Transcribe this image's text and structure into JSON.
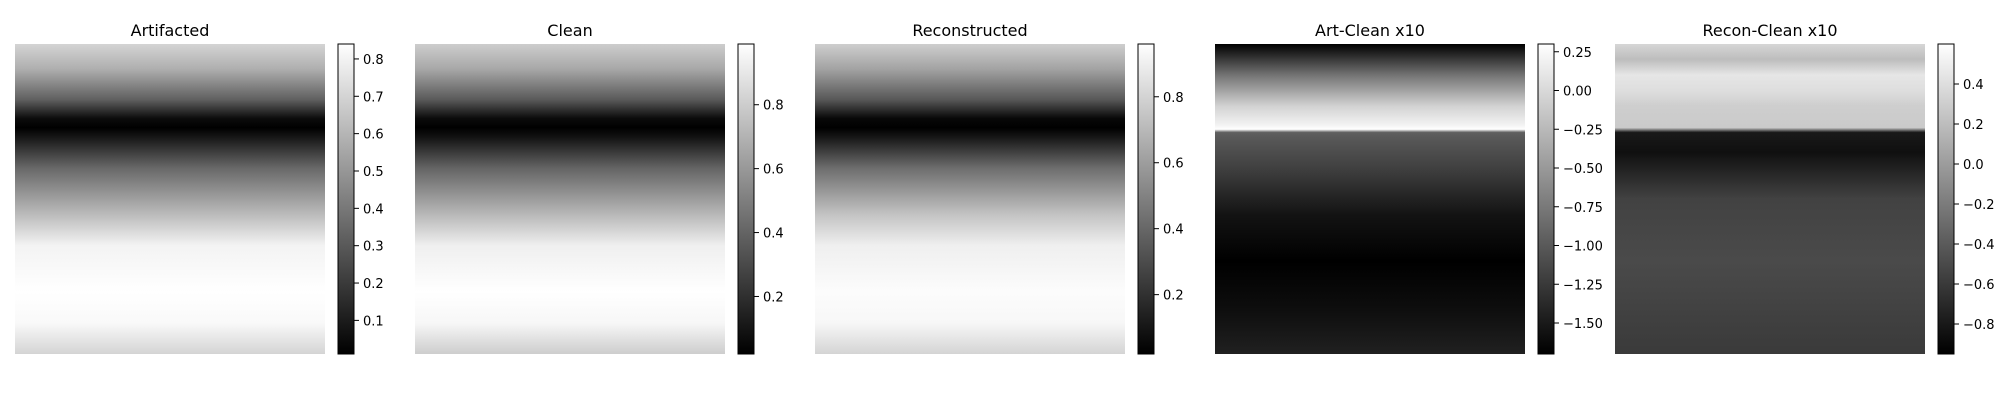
{
  "chart_data": [
    {
      "type": "heatmap",
      "title": "Artifacted",
      "colormap": "gray",
      "colorbar": {
        "range": [
          0.01,
          0.84
        ],
        "ticks": [
          0.1,
          0.2,
          0.3,
          0.4,
          0.5,
          0.6,
          0.7,
          0.8
        ],
        "tick_labels": [
          "0.1",
          "0.2",
          "0.3",
          "0.4",
          "0.5",
          "0.6",
          "0.7",
          "0.8"
        ]
      },
      "row_profile": {
        "rows": [
          0,
          0.08,
          0.18,
          0.24,
          0.27,
          0.3,
          0.4,
          0.55,
          0.65,
          0.8,
          0.9,
          1
        ],
        "values": [
          0.7,
          0.58,
          0.32,
          0.05,
          0.01,
          0.08,
          0.35,
          0.62,
          0.8,
          0.84,
          0.82,
          0.7
        ]
      }
    },
    {
      "type": "heatmap",
      "title": "Clean",
      "colormap": "gray",
      "colorbar": {
        "range": [
          0.02,
          0.99
        ],
        "ticks": [
          0.2,
          0.4,
          0.6,
          0.8
        ],
        "tick_labels": [
          "0.2",
          "0.4",
          "0.6",
          "0.8"
        ]
      },
      "row_profile": {
        "rows": [
          0,
          0.08,
          0.18,
          0.24,
          0.27,
          0.3,
          0.4,
          0.55,
          0.65,
          0.8,
          0.9,
          1
        ],
        "values": [
          0.8,
          0.66,
          0.36,
          0.06,
          0.02,
          0.09,
          0.4,
          0.72,
          0.93,
          0.99,
          0.96,
          0.8
        ]
      }
    },
    {
      "type": "heatmap",
      "title": "Reconstructed",
      "colormap": "gray",
      "colorbar": {
        "range": [
          0.02,
          0.96
        ],
        "ticks": [
          0.2,
          0.4,
          0.6,
          0.8
        ],
        "tick_labels": [
          "0.2",
          "0.4",
          "0.6",
          "0.8"
        ]
      },
      "row_profile": {
        "rows": [
          0,
          0.08,
          0.18,
          0.24,
          0.27,
          0.3,
          0.4,
          0.55,
          0.65,
          0.8,
          0.9,
          1
        ],
        "values": [
          0.78,
          0.62,
          0.34,
          0.05,
          0.02,
          0.1,
          0.42,
          0.74,
          0.9,
          0.95,
          0.93,
          0.8
        ]
      }
    },
    {
      "type": "heatmap",
      "title": "Art-Clean x10",
      "colormap": "gray",
      "colorbar": {
        "range": [
          -1.7,
          0.3
        ],
        "ticks": [
          0.25,
          0.0,
          -0.25,
          -0.5,
          -0.75,
          -1.0,
          -1.25,
          -1.5
        ],
        "tick_labels": [
          "0.25",
          "0.00",
          "−0.25",
          "−0.50",
          "−0.75",
          "−1.00",
          "−1.25",
          "−1.50"
        ]
      },
      "row_profile": {
        "rows": [
          0,
          0.1,
          0.2,
          0.26,
          0.275,
          0.285,
          0.3,
          0.4,
          0.55,
          0.7,
          0.85,
          1
        ],
        "values": [
          -1.7,
          -0.8,
          -0.05,
          0.2,
          0.3,
          -0.95,
          -1.0,
          -1.2,
          -1.55,
          -1.7,
          -1.6,
          -1.45
        ]
      }
    },
    {
      "type": "heatmap",
      "title": "Recon-Clean x10",
      "colormap": "gray",
      "colorbar": {
        "range": [
          -0.95,
          0.6
        ],
        "ticks": [
          0.4,
          0.2,
          0.0,
          -0.2,
          -0.4,
          -0.6,
          -0.8
        ],
        "tick_labels": [
          "0.4",
          "0.2",
          "0.0",
          "−0.2",
          "−0.4",
          "−0.6",
          "−0.8"
        ]
      },
      "row_profile": {
        "rows": [
          0,
          0.05,
          0.1,
          0.15,
          0.2,
          0.27,
          0.285,
          0.35,
          0.5,
          0.7,
          0.85,
          1
        ],
        "values": [
          0.35,
          0.2,
          0.45,
          0.4,
          0.3,
          0.28,
          -0.8,
          -0.85,
          -0.55,
          -0.5,
          -0.55,
          -0.6
        ]
      }
    }
  ]
}
